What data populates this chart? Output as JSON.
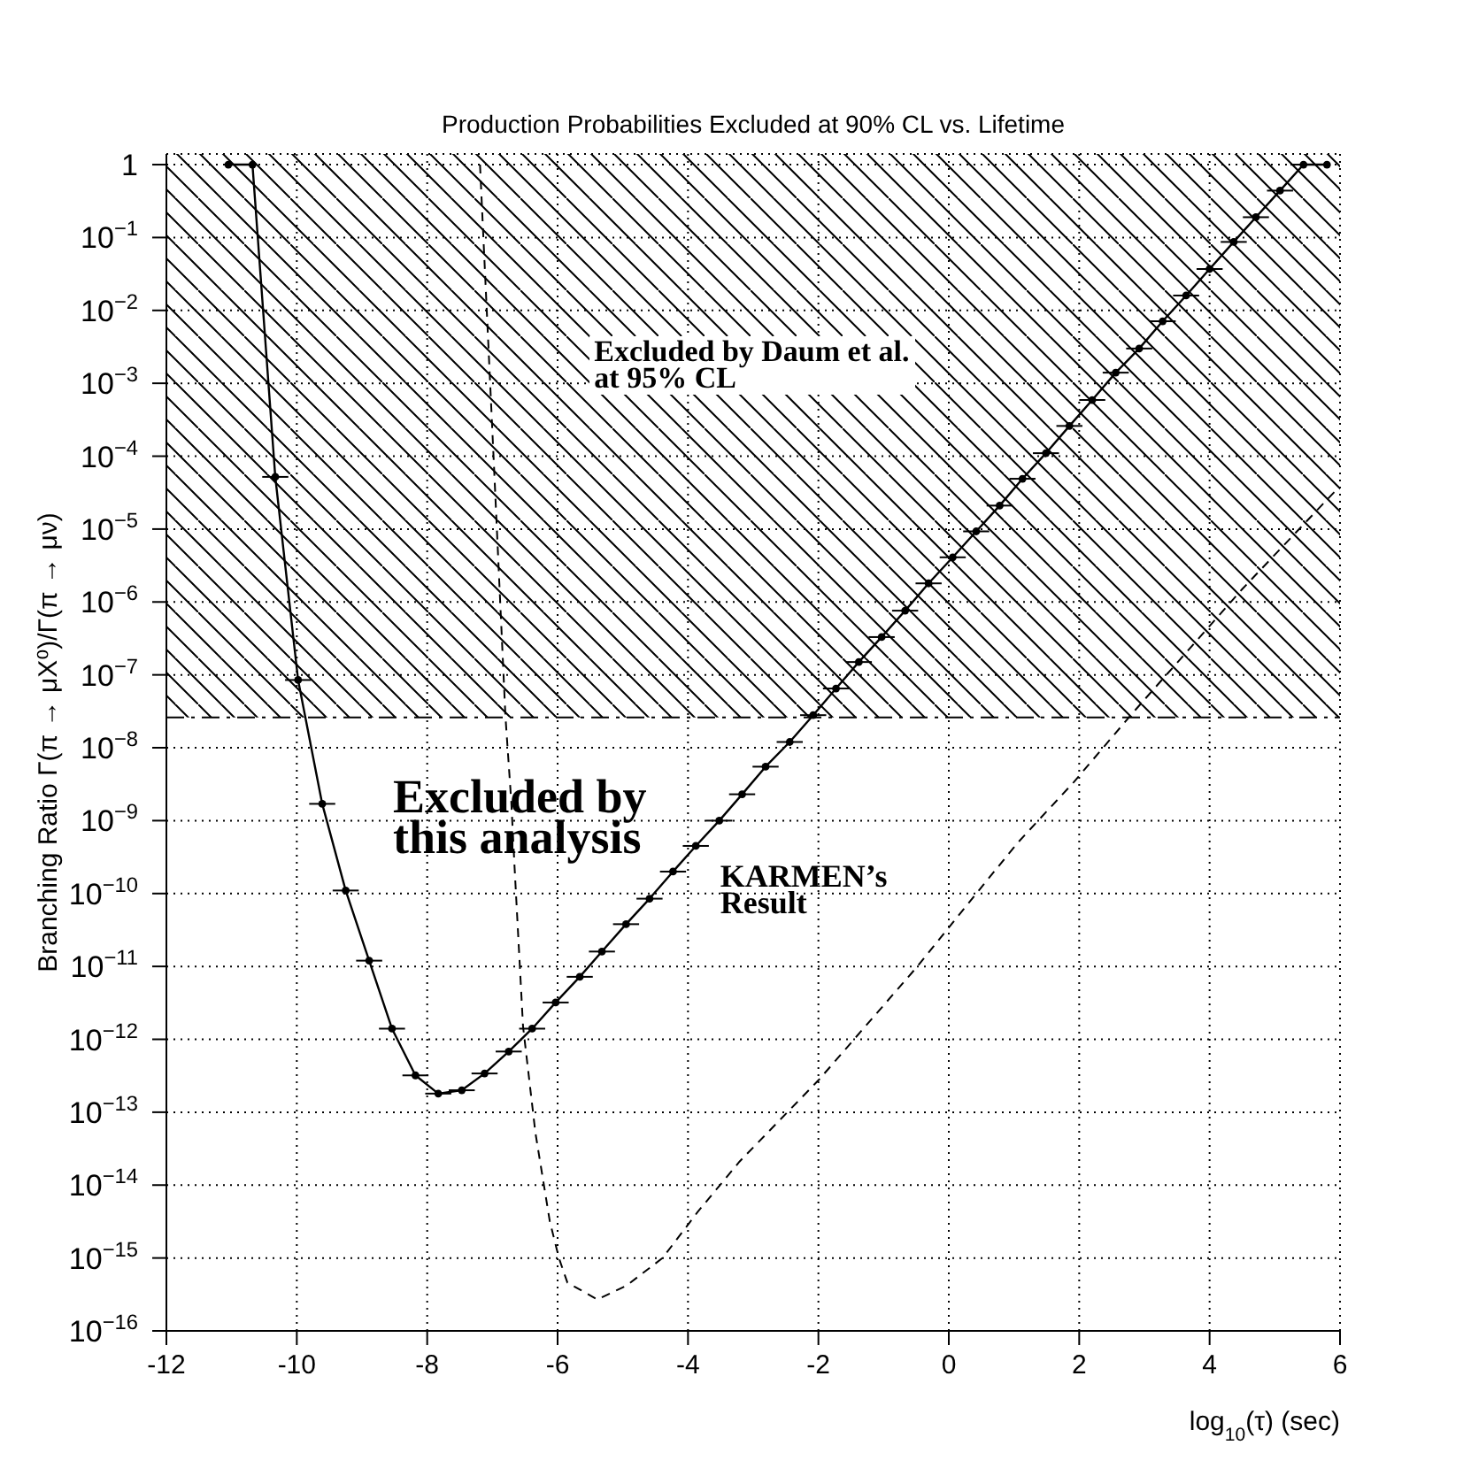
{
  "chart_data": {
    "type": "line",
    "title": "Production Probabilities Excluded at 90% CL vs. Lifetime",
    "xlabel": "log$_{10}$(τ) (sec)",
    "ylabel": "Branching Ratio Γ(π → μX⁰)/Γ(π → μν)",
    "log": "y",
    "grid": true,
    "xlim": [
      -12,
      6
    ],
    "xticks": [
      -12,
      -10,
      -8,
      -6,
      -4,
      -2,
      0,
      2,
      4,
      6
    ],
    "ylim": [
      1e-16,
      1.4
    ],
    "yticks": [
      {
        "value": 1,
        "label": "1"
      },
      {
        "value": 0.1,
        "label": "10$^{−1}$"
      },
      {
        "value": 0.01,
        "label": "10$^{−2}$"
      },
      {
        "value": 0.001,
        "label": "10$^{−3}$"
      },
      {
        "value": 0.0001,
        "label": "10$^{−4}$"
      },
      {
        "value": 1e-05,
        "label": "10$^{−5}$"
      },
      {
        "value": 1e-06,
        "label": "10$^{−6}$"
      },
      {
        "value": 1e-07,
        "label": "10$^{−7}$"
      },
      {
        "value": 1e-08,
        "label": "10$^{−8}$"
      },
      {
        "value": 1e-09,
        "label": "10$^{−9}$"
      },
      {
        "value": 1e-10,
        "label": "10$^{−10}$"
      },
      {
        "value": 1e-11,
        "label": "10$^{−11}$"
      },
      {
        "value": 1e-12,
        "label": "10$^{−12}$"
      },
      {
        "value": 1e-13,
        "label": "10$^{−13}$"
      },
      {
        "value": 1e-14,
        "label": "10$^{−14}$"
      },
      {
        "value": 1e-15,
        "label": "10$^{−15}$"
      },
      {
        "value": 1e-16,
        "label": "10$^{−16}$"
      }
    ],
    "series": [
      {
        "color": "#000000",
        "marker": "circle",
        "line_style": "solid",
        "x": [
          -11.05,
          -10.68,
          -10.33,
          -9.98,
          -9.61,
          -9.25,
          -8.89,
          -8.54,
          -8.18,
          -7.83,
          -7.47,
          -7.12,
          -6.75,
          -6.39,
          -6.03,
          -5.66,
          -5.32,
          -4.95,
          -4.59,
          -4.23,
          -3.88,
          -3.52,
          -3.17,
          -2.81,
          -2.44,
          -2.08,
          -1.73,
          -1.38,
          -1.03,
          -0.67,
          -0.31,
          0.06,
          0.42,
          0.78,
          1.13,
          1.49,
          1.85,
          2.2,
          2.56,
          2.92,
          3.28,
          3.64,
          4.0,
          4.37,
          4.71,
          5.08,
          5.44,
          5.8
        ],
        "values": [
          1,
          1,
          5.2e-05,
          8.5e-08,
          1.7e-09,
          1.1e-10,
          1.2e-11,
          1.4e-12,
          3.2e-13,
          1.8e-13,
          2e-13,
          3.4e-13,
          6.8e-13,
          1.4e-12,
          3.2e-12,
          7.2e-12,
          1.6e-11,
          3.8e-11,
          8.5e-11,
          2e-10,
          4.5e-10,
          1e-09,
          2.3e-09,
          5.5e-09,
          1.2e-08,
          2.8e-08,
          6.5e-08,
          1.5e-07,
          3.3e-07,
          7.6e-07,
          1.8e-06,
          4.1e-06,
          9.3e-06,
          2.1e-05,
          4.9e-05,
          0.00011,
          0.00026,
          0.00059,
          0.0014,
          0.003,
          0.0071,
          0.016,
          0.037,
          0.087,
          0.19,
          0.44,
          1,
          1
        ],
        "xerrors": [
          null,
          null,
          0.2,
          0.2,
          0.2,
          0.2,
          0.2,
          0.2,
          0.2,
          0.2,
          0.2,
          0.2,
          0.2,
          0.2,
          0.2,
          0.2,
          0.2,
          0.2,
          0.2,
          0.2,
          0.2,
          0.2,
          0.2,
          0.2,
          0.2,
          0.2,
          0.2,
          0.2,
          0.2,
          0.2,
          0.2,
          0.2,
          0.2,
          0.2,
          0.2,
          0.2,
          0.2,
          0.2,
          0.2,
          0.2,
          0.2,
          0.2,
          0.2,
          0.2,
          0.2,
          0.2,
          0.2,
          null
        ]
      },
      {
        "color": "#000000",
        "marker": "none",
        "line_style": "dashed",
        "x": [
          -7.19,
          -6.98,
          -6.8,
          -6.71,
          -6.66,
          -6.53,
          -6.34,
          -6.12,
          -5.98,
          -5.85,
          -5.39,
          -4.94,
          -4.39,
          -3.85,
          -3.21,
          -1.99,
          -0.49,
          0.46,
          1.05,
          1.92,
          2.82,
          4.5,
          5.95
        ],
        "values": [
          1,
          8.9e-05,
          2.7e-08,
          1.8e-09,
          2.3e-10,
          1.5e-12,
          5.2e-14,
          3.2e-15,
          1e-15,
          4.6e-16,
          2.7e-16,
          4.2e-16,
          1e-15,
          4.3e-15,
          2.1e-14,
          2.8e-13,
          9.8e-12,
          1.1e-10,
          4.9e-10,
          3.4e-09,
          3e-08,
          1.5e-06,
          3.5e-05
        ]
      }
    ],
    "bands": [
      {
        "axis": "y",
        "from": 2.6e-08,
        "to": 1.4,
        "color": "#000000"
      }
    ],
    "annotations": [
      "Excluded by Daum et al.\nat 95% CL",
      "Excluded by\nthis analysis",
      "KARMEN’s\nResult"
    ]
  }
}
